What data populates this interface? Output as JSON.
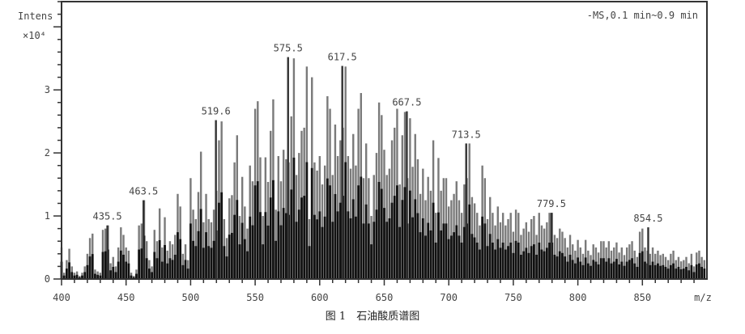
{
  "chart_data": {
    "type": "bar",
    "ylabel": "Intens",
    "yunit": "×10⁴",
    "xlabel": "m/z",
    "annotation": "-MS,0.1 min~0.9 min",
    "caption": "图 1　石油酸质谱图",
    "xlim": [
      400,
      900
    ],
    "ylim": [
      0,
      4.4
    ],
    "xticks": [
      400,
      450,
      500,
      550,
      600,
      650,
      700,
      750,
      800,
      850
    ],
    "yticks": [
      0,
      1,
      2,
      3
    ],
    "grid": false,
    "colors": {
      "peak": "#7a7a7a",
      "base": "#111111",
      "axis": "#333333"
    },
    "spectrum": {
      "x_start": 400,
      "x_step": 2,
      "values": [
        0.5,
        0.1,
        0.3,
        0.48,
        0.2,
        0.1,
        0.12,
        0.05,
        0.1,
        0.2,
        0.4,
        0.65,
        0.72,
        0.15,
        0.12,
        0.1,
        0.78,
        0.8,
        0.85,
        0.25,
        0.35,
        0.2,
        0.5,
        0.82,
        0.7,
        0.5,
        0.45,
        0.1,
        0.05,
        0.15,
        0.85,
        0.88,
        1.25,
        0.6,
        0.3,
        0.2,
        0.78,
        0.6,
        1.12,
        0.5,
        0.98,
        0.45,
        0.6,
        0.55,
        0.7,
        1.35,
        1.15,
        0.4,
        0.55,
        0.3,
        1.6,
        1.1,
        0.95,
        1.38,
        2.02,
        0.9,
        1.35,
        0.95,
        0.9,
        1.1,
        1.4,
        2.2,
        2.5,
        0.95,
        0.65,
        1.28,
        1.33,
        1.85,
        2.28,
        1.0,
        1.62,
        1.15,
        0.8,
        1.8,
        1.55,
        2.7,
        2.82,
        1.93,
        1.0,
        1.93,
        1.54,
        2.35,
        2.85,
        1.1,
        1.95,
        1.55,
        2.05,
        1.9,
        1.85,
        2.58,
        3.5,
        1.65,
        2.0,
        2.35,
        2.4,
        3.37,
        0.95,
        3.2,
        1.85,
        1.72,
        1.95,
        1.5,
        1.8,
        2.9,
        2.7,
        1.65,
        2.45,
        1.95,
        2.2,
        2.4,
        3.37,
        1.95,
        1.75,
        2.3,
        1.8,
        2.7,
        2.95,
        1.6,
        2.15,
        1.6,
        1.0,
        1.65,
        2.0,
        2.8,
        2.6,
        2.05,
        1.65,
        1.75,
        2.2,
        2.4,
        2.7,
        1.5,
        2.28,
        2.65,
        1.6,
        2.55,
        1.78,
        2.3,
        1.9,
        1.35,
        1.75,
        1.25,
        1.62,
        1.4,
        2.2,
        1.05,
        1.92,
        1.4,
        1.6,
        1.6,
        1.15,
        1.25,
        1.35,
        1.55,
        1.25,
        1.05,
        1.5,
        1.6,
        2.15,
        1.3,
        1.2,
        1.05,
        0.85,
        1.8,
        1.6,
        0.95,
        1.3,
        1.05,
        0.85,
        1.15,
        0.9,
        1.05,
        0.85,
        0.95,
        1.05,
        0.75,
        1.1,
        1.05,
        0.7,
        0.8,
        0.9,
        0.75,
        0.95,
        1.0,
        0.7,
        1.05,
        0.85,
        0.8,
        0.9,
        1.05,
        1.05,
        0.7,
        0.65,
        0.8,
        0.75,
        0.65,
        0.5,
        0.7,
        0.55,
        0.45,
        0.62,
        0.5,
        0.4,
        0.62,
        0.45,
        0.38,
        0.55,
        0.5,
        0.42,
        0.6,
        0.6,
        0.5,
        0.6,
        0.45,
        0.5,
        0.58,
        0.42,
        0.5,
        0.38,
        0.5,
        0.55,
        0.6,
        0.45,
        0.35,
        0.75,
        0.8,
        0.5,
        0.45,
        0.4,
        0.5,
        0.4,
        0.45,
        0.38,
        0.4,
        0.35,
        0.3,
        0.4,
        0.45,
        0.3,
        0.35,
        0.28,
        0.3,
        0.35,
        0.25,
        0.4,
        0.2,
        0.42,
        0.45,
        0.35,
        0.3
      ]
    },
    "labeled_peaks": [
      {
        "mz": 435.5,
        "intensity": 0.85,
        "label": "435.5"
      },
      {
        "mz": 463.5,
        "intensity": 1.25,
        "label": "463.5"
      },
      {
        "mz": 519.6,
        "intensity": 2.52,
        "label": "519.6"
      },
      {
        "mz": 575.5,
        "intensity": 3.52,
        "label": "575.5"
      },
      {
        "mz": 617.5,
        "intensity": 3.38,
        "label": "617.5"
      },
      {
        "mz": 667.5,
        "intensity": 2.66,
        "label": "667.5"
      },
      {
        "mz": 713.5,
        "intensity": 2.15,
        "label": "713.5"
      },
      {
        "mz": 779.5,
        "intensity": 1.05,
        "label": "779.5"
      },
      {
        "mz": 854.5,
        "intensity": 0.82,
        "label": "854.5"
      }
    ]
  }
}
